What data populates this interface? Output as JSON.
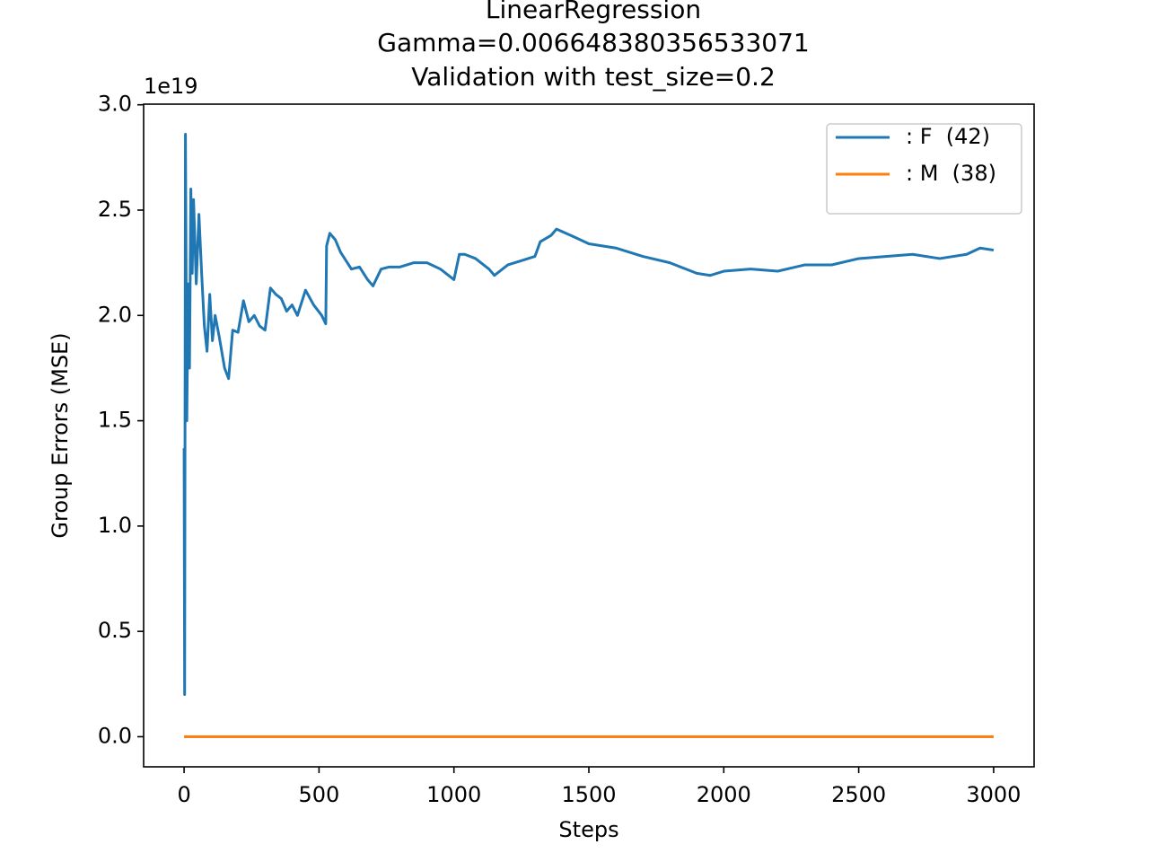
{
  "chart_data": {
    "type": "line",
    "title": [
      "LinearRegression",
      "Gamma=0.006648380356533071",
      "Validation with test_size=0.2"
    ],
    "x_label": "Steps",
    "y_label": "Group Errors (MSE)",
    "y_offset_label": "1e19",
    "xlim": [
      -150,
      3150
    ],
    "ylim": [
      -0.143,
      3.003
    ],
    "xticks": [
      0,
      500,
      1000,
      1500,
      2000,
      2500,
      3000
    ],
    "yticks": [
      {
        "value": 0,
        "label": "0.0"
      },
      0.5,
      {
        "value": 1,
        "label": "1.0"
      },
      1.5,
      {
        "value": 2,
        "label": "2.0"
      },
      2.5,
      {
        "value": 3,
        "label": "3.0"
      }
    ],
    "grid": false,
    "legend": "upper right",
    "series": [
      {
        "name": ": F  (42)",
        "color": "#1f77b4",
        "x": [
          0,
          2,
          5,
          10,
          15,
          20,
          25,
          30,
          35,
          45,
          55,
          65,
          75,
          85,
          95,
          105,
          115,
          130,
          150,
          165,
          180,
          200,
          220,
          240,
          260,
          280,
          300,
          320,
          340,
          360,
          380,
          400,
          420,
          450,
          480,
          510,
          525,
          528,
          540,
          560,
          580,
          620,
          650,
          680,
          700,
          730,
          760,
          800,
          850,
          900,
          950,
          1000,
          1020,
          1040,
          1080,
          1130,
          1150,
          1200,
          1250,
          1300,
          1320,
          1360,
          1380,
          1450,
          1500,
          1600,
          1700,
          1800,
          1900,
          1950,
          2000,
          2100,
          2200,
          2300,
          2400,
          2500,
          2600,
          2700,
          2800,
          2900,
          2950,
          3000
        ],
        "values": [
          1.37,
          0.2,
          2.86,
          1.5,
          2.15,
          1.75,
          2.6,
          2.2,
          2.55,
          2.15,
          2.48,
          2.2,
          1.95,
          1.83,
          2.1,
          1.88,
          2.0,
          1.9,
          1.75,
          1.7,
          1.93,
          1.92,
          2.07,
          1.97,
          2.0,
          1.95,
          1.93,
          2.13,
          2.1,
          2.08,
          2.02,
          2.05,
          2.0,
          2.12,
          2.05,
          2.0,
          1.96,
          2.33,
          2.39,
          2.36,
          2.3,
          2.22,
          2.23,
          2.17,
          2.14,
          2.22,
          2.23,
          2.23,
          2.25,
          2.25,
          2.22,
          2.17,
          2.29,
          2.29,
          2.27,
          2.22,
          2.19,
          2.24,
          2.26,
          2.28,
          2.35,
          2.38,
          2.41,
          2.37,
          2.34,
          2.32,
          2.28,
          2.25,
          2.2,
          2.19,
          2.21,
          2.22,
          2.21,
          2.24,
          2.24,
          2.27,
          2.28,
          2.29,
          2.27,
          2.29,
          2.32,
          2.31
        ]
      },
      {
        "name": ": M  (38)",
        "color": "#ff7f0e",
        "x": [
          0,
          3000
        ],
        "values": [
          0,
          0
        ]
      }
    ]
  }
}
